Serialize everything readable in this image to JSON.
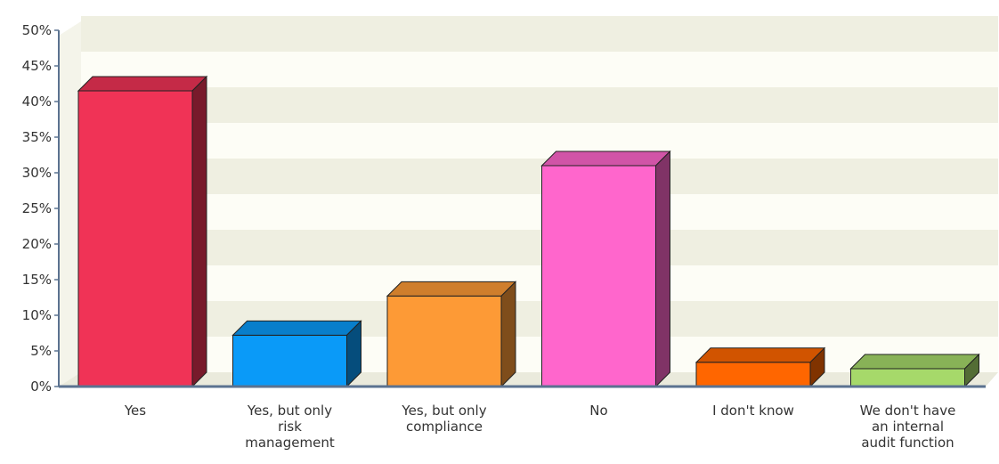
{
  "chart_data": {
    "type": "bar",
    "title": "",
    "xlabel": "",
    "ylabel": "",
    "ylim": [
      0,
      50
    ],
    "y_ticks": [
      "0%",
      "5%",
      "10%",
      "15%",
      "20%",
      "25%",
      "30%",
      "35%",
      "40%",
      "45%",
      "50%"
    ],
    "categories": [
      [
        "Yes"
      ],
      [
        "Yes, but only",
        "risk",
        "management"
      ],
      [
        "Yes, but only",
        "compliance"
      ],
      [
        "No"
      ],
      [
        "I don't know"
      ],
      [
        "We don't have",
        "an internal",
        "audit function"
      ]
    ],
    "values": [
      41.5,
      7.2,
      12.7,
      31.0,
      3.4,
      2.5
    ],
    "colors": [
      "#f03356",
      "#0a9af8",
      "#fd9a36",
      "#ff66cc",
      "#ff6600",
      "#a6d96a"
    ],
    "grid": true,
    "style": "3d"
  }
}
